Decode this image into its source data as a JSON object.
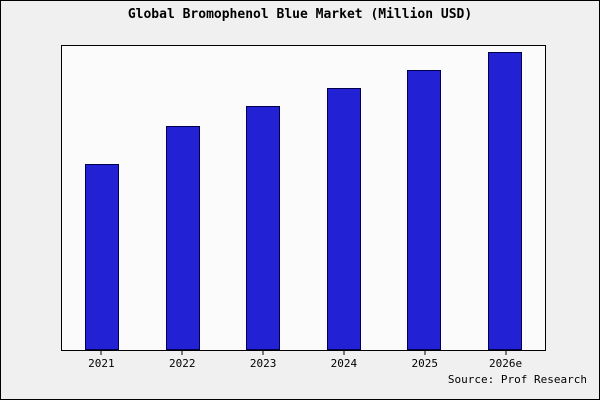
{
  "chart_data": {
    "type": "bar",
    "title": "Global Bromophenol Blue Market (Million USD)",
    "categories": [
      "2021",
      "2022",
      "2023",
      "2024",
      "2025",
      "2026e"
    ],
    "values": [
      62.5,
      75.3,
      81.9,
      87.9,
      93.9,
      100
    ],
    "xlabel": "",
    "ylabel": "",
    "ylim": [
      0,
      102
    ],
    "grid": false,
    "legend": "none",
    "bar_color": "#2222d4",
    "bar_edge_color": "#00004d",
    "source": "Source: Prof Research"
  }
}
